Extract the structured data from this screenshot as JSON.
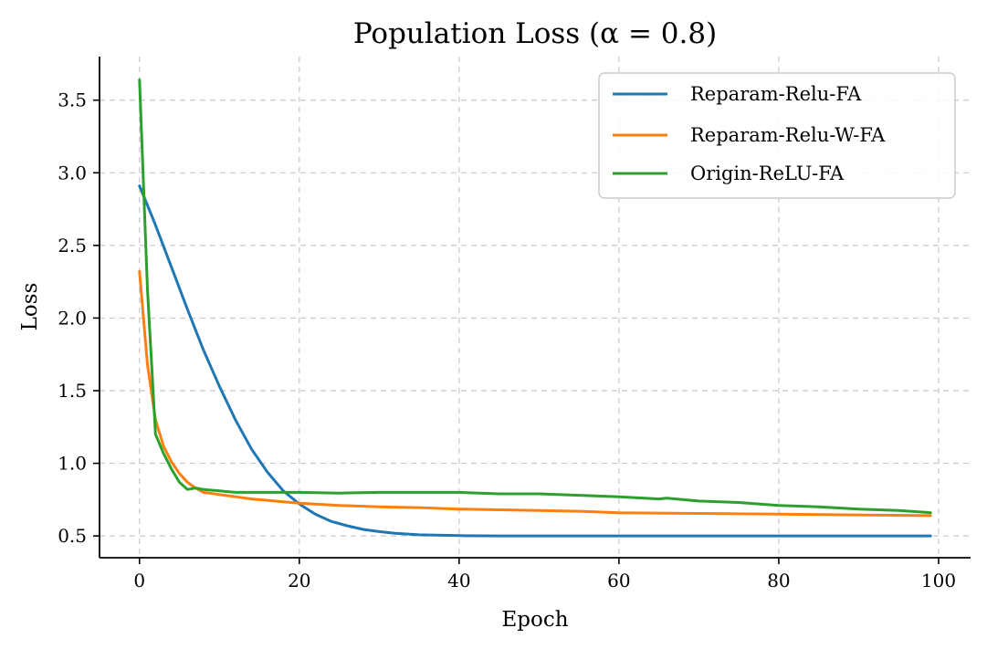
{
  "chart_data": {
    "type": "line",
    "title": "Population Loss (α = 0.8)",
    "xlabel": "Epoch",
    "ylabel": "Loss",
    "xlim": [
      -5,
      104
    ],
    "ylim": [
      0.35,
      3.8
    ],
    "xticks": [
      0,
      20,
      40,
      60,
      80,
      100
    ],
    "yticks": [
      0.5,
      1.0,
      1.5,
      2.0,
      2.5,
      3.0,
      3.5
    ],
    "xtick_labels": [
      "0",
      "20",
      "40",
      "60",
      "80",
      "100"
    ],
    "ytick_labels": [
      "0.5",
      "1.0",
      "1.5",
      "2.0",
      "2.5",
      "3.0",
      "3.5"
    ],
    "grid": true,
    "legend_position": "upper-right",
    "series": [
      {
        "name": "Reparam-Relu-FA",
        "color": "#1f77b4",
        "x": [
          0,
          2,
          4,
          6,
          8,
          10,
          12,
          14,
          16,
          18,
          20,
          22,
          24,
          26,
          28,
          30,
          32,
          35,
          40,
          45,
          50,
          60,
          70,
          80,
          90,
          99
        ],
        "y": [
          2.91,
          2.64,
          2.35,
          2.06,
          1.78,
          1.53,
          1.3,
          1.1,
          0.94,
          0.81,
          0.72,
          0.65,
          0.6,
          0.57,
          0.545,
          0.53,
          0.518,
          0.508,
          0.502,
          0.5,
          0.5,
          0.5,
          0.5,
          0.5,
          0.5,
          0.5
        ]
      },
      {
        "name": "Reparam-Relu-W-FA",
        "color": "#ff7f0e",
        "x": [
          0,
          1,
          2,
          3,
          4,
          5,
          6,
          7,
          8,
          10,
          12,
          14,
          16,
          18,
          20,
          25,
          30,
          35,
          40,
          45,
          50,
          55,
          60,
          70,
          80,
          90,
          99
        ],
        "y": [
          2.32,
          1.68,
          1.3,
          1.12,
          1.01,
          0.93,
          0.87,
          0.83,
          0.8,
          0.785,
          0.77,
          0.755,
          0.745,
          0.735,
          0.725,
          0.71,
          0.7,
          0.695,
          0.685,
          0.68,
          0.675,
          0.67,
          0.66,
          0.655,
          0.65,
          0.645,
          0.64
        ]
      },
      {
        "name": "Origin-ReLU-FA",
        "color": "#2ca02c",
        "x": [
          0,
          1,
          2,
          3,
          4,
          5,
          6,
          7,
          8,
          10,
          12,
          15,
          20,
          25,
          30,
          35,
          40,
          45,
          50,
          55,
          60,
          65,
          66,
          70,
          75,
          80,
          85,
          90,
          95,
          99
        ],
        "y": [
          3.64,
          2.2,
          1.2,
          1.07,
          0.96,
          0.87,
          0.82,
          0.83,
          0.82,
          0.81,
          0.8,
          0.8,
          0.8,
          0.795,
          0.8,
          0.8,
          0.8,
          0.79,
          0.79,
          0.78,
          0.77,
          0.755,
          0.76,
          0.74,
          0.73,
          0.71,
          0.7,
          0.685,
          0.675,
          0.66
        ]
      }
    ]
  }
}
